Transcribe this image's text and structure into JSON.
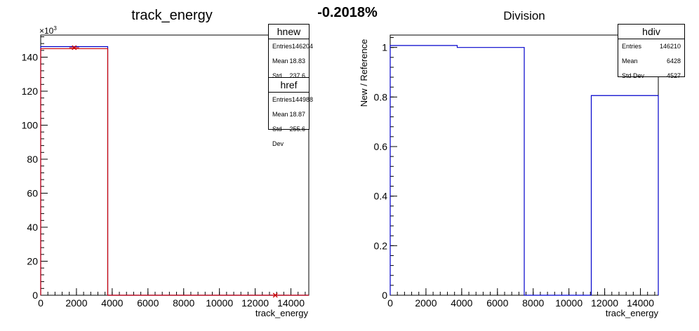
{
  "header": {
    "diff_label": "-0.2018%"
  },
  "left_pad": {
    "title": "track_energy",
    "exponent_label": "×10",
    "exponent_power": "3",
    "stats": [
      {
        "title": "hnew",
        "rows": [
          {
            "label": "Entries",
            "value": "146204"
          },
          {
            "label": "Mean",
            "value": "18.83"
          },
          {
            "label": "Std Dev",
            "value": "237.6"
          }
        ]
      },
      {
        "title": "href",
        "rows": [
          {
            "label": "Entries",
            "value": "144988"
          },
          {
            "label": "Mean",
            "value": "18.87"
          },
          {
            "label": "Std Dev",
            "value": "255.6"
          }
        ]
      }
    ]
  },
  "right_pad": {
    "title": "Division",
    "stats": {
      "title": "hdiv",
      "rows": [
        {
          "label": "Entries",
          "value": "146210"
        },
        {
          "label": "Mean",
          "value": "6428"
        },
        {
          "label": "Std Dev",
          "value": "4527"
        }
      ]
    }
  },
  "chart_data": [
    {
      "type": "bar",
      "title": "track_energy",
      "xlabel": "track_energy",
      "ylabel": "",
      "xlim": [
        0,
        15000
      ],
      "ylim": [
        0,
        153000
      ],
      "xticks": [
        0,
        2000,
        4000,
        6000,
        8000,
        10000,
        12000,
        14000
      ],
      "yticks": [
        0,
        20000,
        40000,
        60000,
        80000,
        100000,
        120000,
        140000
      ],
      "ytick_labels": [
        "0",
        "20",
        "40",
        "60",
        "80",
        "100",
        "120",
        "140"
      ],
      "bin_edges": [
        0,
        3750,
        7500,
        11250,
        15000
      ],
      "series": [
        {
          "name": "hnew",
          "color": "#0000cc",
          "values": [
            146204,
            0,
            0,
            0
          ]
        },
        {
          "name": "href",
          "color": "#cc0000",
          "values": [
            144988,
            0,
            0,
            0
          ]
        }
      ],
      "markers": [
        {
          "x": 1875,
          "y": 145600
        },
        {
          "x": 13125,
          "y": 0
        }
      ],
      "marker_color": "#cc0000",
      "grid": false
    },
    {
      "type": "bar",
      "title": "Division",
      "xlabel": "track_energy",
      "ylabel": "New / Reference",
      "xlim": [
        0,
        15000
      ],
      "ylim": [
        0,
        1.05
      ],
      "xticks": [
        0,
        2000,
        4000,
        6000,
        8000,
        10000,
        12000,
        14000
      ],
      "yticks": [
        0,
        0.2,
        0.4,
        0.6,
        0.8,
        1
      ],
      "ytick_labels": [
        "0",
        "0.2",
        "0.4",
        "0.6",
        "0.8",
        "1"
      ],
      "bin_edges": [
        0,
        3750,
        7500,
        11250,
        15000
      ],
      "series": [
        {
          "name": "hdiv",
          "color": "#0000cc",
          "values": [
            1.008,
            1.0,
            0,
            0.806
          ]
        }
      ],
      "grid": false
    }
  ]
}
